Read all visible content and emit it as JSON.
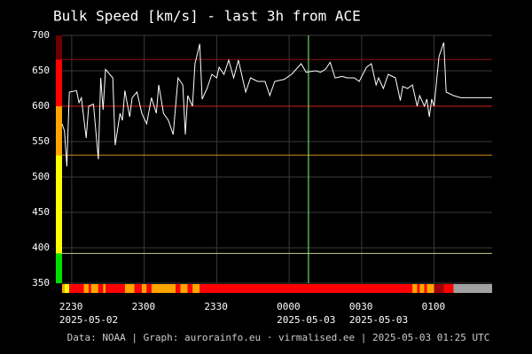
{
  "chart_data": {
    "type": "line",
    "title": "Bulk Speed [km/s] - last 3h from ACE",
    "footer": "Data: NOAA | Graph: aurorainfo.eu · virmalised.ee | 2025-05-03 01:25 UTC",
    "xlim": [
      "2025-05-02T22:26",
      "2025-05-03T01:24"
    ],
    "xticks": [
      {
        "value": "2025-05-02T22:30",
        "label": "2230"
      },
      {
        "value": "2025-05-02T23:00",
        "label": "2300"
      },
      {
        "value": "2025-05-02T23:30",
        "label": "2330"
      },
      {
        "value": "2025-05-03T00:00",
        "label": "0000"
      },
      {
        "value": "2025-05-03T00:30",
        "label": "0030"
      },
      {
        "value": "2025-05-03T01:00",
        "label": "0100"
      }
    ],
    "date_labels": [
      {
        "value": "2025-05-02T22:30",
        "label": "2025-05-02"
      },
      {
        "value": "2025-05-03T00:00",
        "label": "2025-05-03"
      },
      {
        "value": "2025-05-03T00:30",
        "label": "2025-05-03"
      }
    ],
    "ylim": [
      350,
      700
    ],
    "yticks": [
      350,
      400,
      450,
      500,
      550,
      600,
      650,
      700
    ],
    "grid": true,
    "bands": [
      {
        "from": 350,
        "to": 392,
        "color": "#00e000"
      },
      {
        "from": 392,
        "to": 531,
        "color": "#ffff00"
      },
      {
        "from": 531,
        "to": 600,
        "color": "#ffa500"
      },
      {
        "from": 600,
        "to": 666,
        "color": "#ff0000"
      },
      {
        "from": 666,
        "to": 700,
        "color": "#6a0000"
      }
    ],
    "thresholds": [
      {
        "value": 392,
        "color": "#c8c890"
      },
      {
        "value": 531,
        "color": "#d08a20"
      },
      {
        "value": 600,
        "color": "#d02020"
      },
      {
        "value": 666,
        "color": "#8a1010"
      }
    ],
    "marker_line": {
      "x": "2025-05-03T00:08",
      "color": "#80ff80"
    },
    "strip": {
      "times": [
        "2025-05-02T22:26",
        "2025-05-02T22:27",
        "2025-05-02T22:29",
        "2025-05-02T22:35",
        "2025-05-02T22:37",
        "2025-05-02T22:38",
        "2025-05-02T22:41",
        "2025-05-02T22:43",
        "2025-05-02T22:44",
        "2025-05-02T22:52",
        "2025-05-02T22:56",
        "2025-05-02T22:59",
        "2025-05-02T23:01",
        "2025-05-02T23:03",
        "2025-05-02T23:13",
        "2025-05-02T23:15",
        "2025-05-02T23:18",
        "2025-05-02T23:20",
        "2025-05-02T23:23",
        "2025-05-03T00:51",
        "2025-05-03T00:53",
        "2025-05-03T00:54",
        "2025-05-03T00:56",
        "2025-05-03T00:57",
        "2025-05-03T01:00",
        "2025-05-03T01:04",
        "2025-05-03T01:08",
        "2025-05-03T01:24"
      ],
      "colors": [
        "#ffa500",
        "#ffff00",
        "#ff0000",
        "#ffa500",
        "#ff0000",
        "#ffa500",
        "#ff0000",
        "#ffa500",
        "#ff0000",
        "#ffa500",
        "#ff0000",
        "#ffa500",
        "#ff0000",
        "#ffa500",
        "#ff0000",
        "#ffa500",
        "#ff0000",
        "#ffa500",
        "#ff0000",
        "#ffa500",
        "#ff0000",
        "#ffa500",
        "#ff0000",
        "#ffa500",
        "#a00000",
        "#ff0000",
        "#a0a0a0"
      ]
    },
    "x": [
      "2025-05-02T22:26",
      "2025-05-02T22:27",
      "2025-05-02T22:28",
      "2025-05-02T22:29",
      "2025-05-02T22:32",
      "2025-05-02T22:33",
      "2025-05-02T22:34",
      "2025-05-02T22:36",
      "2025-05-02T22:37",
      "2025-05-02T22:39",
      "2025-05-02T22:41",
      "2025-05-02T22:42",
      "2025-05-02T22:43",
      "2025-05-02T22:44",
      "2025-05-02T22:47",
      "2025-05-02T22:48",
      "2025-05-02T22:50",
      "2025-05-02T22:51",
      "2025-05-02T22:52",
      "2025-05-02T22:54",
      "2025-05-02T22:55",
      "2025-05-02T22:57",
      "2025-05-02T22:59",
      "2025-05-02T23:01",
      "2025-05-02T23:03",
      "2025-05-02T23:05",
      "2025-05-02T23:06",
      "2025-05-02T23:08",
      "2025-05-02T23:10",
      "2025-05-02T23:12",
      "2025-05-02T23:14",
      "2025-05-02T23:16",
      "2025-05-02T23:17",
      "2025-05-02T23:18",
      "2025-05-02T23:20",
      "2025-05-02T23:21",
      "2025-05-02T23:23",
      "2025-05-02T23:24",
      "2025-05-02T23:26",
      "2025-05-02T23:28",
      "2025-05-02T23:30",
      "2025-05-02T23:31",
      "2025-05-02T23:33",
      "2025-05-02T23:35",
      "2025-05-02T23:37",
      "2025-05-02T23:39",
      "2025-05-02T23:42",
      "2025-05-02T23:44",
      "2025-05-02T23:47",
      "2025-05-02T23:50",
      "2025-05-02T23:52",
      "2025-05-02T23:54",
      "2025-05-02T23:58",
      "2025-05-03T00:01",
      "2025-05-03T00:05",
      "2025-05-03T00:07",
      "2025-05-03T00:11",
      "2025-05-03T00:13",
      "2025-05-03T00:15",
      "2025-05-03T00:17",
      "2025-05-03T00:19",
      "2025-05-03T00:22",
      "2025-05-03T00:24",
      "2025-05-03T00:27",
      "2025-05-03T00:29",
      "2025-05-03T00:32",
      "2025-05-03T00:34",
      "2025-05-03T00:36",
      "2025-05-03T00:37",
      "2025-05-03T00:39",
      "2025-05-03T00:41",
      "2025-05-03T00:44",
      "2025-05-03T00:46",
      "2025-05-03T00:47",
      "2025-05-03T00:49",
      "2025-05-03T00:51",
      "2025-05-03T00:53",
      "2025-05-03T00:54",
      "2025-05-03T00:56",
      "2025-05-03T00:57",
      "2025-05-03T00:58",
      "2025-05-03T00:59",
      "2025-05-03T01:00",
      "2025-05-03T01:02",
      "2025-05-03T01:04",
      "2025-05-03T01:05",
      "2025-05-03T01:08",
      "2025-05-03T01:11",
      "2025-05-03T01:24"
    ],
    "series": [
      {
        "color": "#ffffff",
        "values": [
          575,
          565,
          515,
          620,
          622,
          605,
          612,
          555,
          600,
          603,
          525,
          640,
          595,
          652,
          640,
          545,
          590,
          580,
          622,
          585,
          612,
          620,
          590,
          575,
          612,
          590,
          630,
          590,
          580,
          560,
          640,
          630,
          560,
          615,
          600,
          660,
          688,
          610,
          625,
          645,
          640,
          655,
          645,
          665,
          640,
          665,
          620,
          640,
          635,
          635,
          615,
          635,
          638,
          645,
          660,
          648,
          650,
          648,
          652,
          662,
          640,
          642,
          640,
          640,
          635,
          655,
          660,
          630,
          640,
          625,
          645,
          640,
          608,
          628,
          625,
          630,
          600,
          615,
          600,
          610,
          585,
          610,
          600,
          670,
          690,
          620,
          615,
          612,
          612
        ]
      }
    ]
  }
}
